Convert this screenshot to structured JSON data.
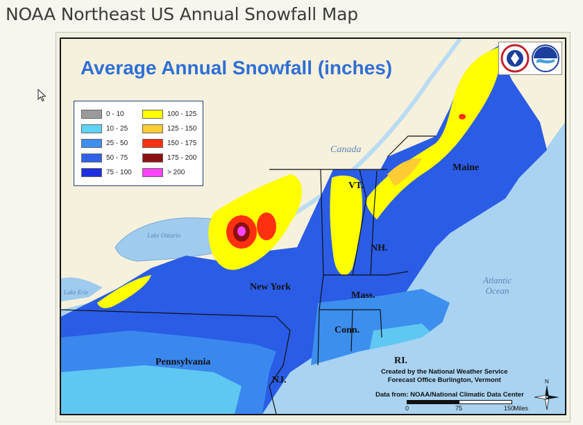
{
  "page": {
    "title": "NOAA Northeast US Annual Snowfall Map"
  },
  "map": {
    "heading": "Average Annual Snowfall (inches)",
    "legend": [
      {
        "label": "0 - 10",
        "color": "#9a9a9a"
      },
      {
        "label": "10 - 25",
        "color": "#5ed3f5"
      },
      {
        "label": "25 - 50",
        "color": "#3e8ef0"
      },
      {
        "label": "50 - 75",
        "color": "#2f62e8"
      },
      {
        "label": "75 - 100",
        "color": "#1d2fe0"
      },
      {
        "label": "100 - 125",
        "color": "#ffff00"
      },
      {
        "label": "125 - 150",
        "color": "#ffcc33"
      },
      {
        "label": "150 - 175",
        "color": "#ff3010"
      },
      {
        "label": "175 - 200",
        "color": "#8b1010"
      },
      {
        "label": "> 200",
        "color": "#ff44ff"
      }
    ],
    "places": {
      "canada": "Canada",
      "lake_ontario": "Lake Ontario",
      "lake_erie": "Lake Erie",
      "atlantic_ocean": "Atlantic\nOcean",
      "maine": "Maine",
      "vt": "VT.",
      "nh": "NH.",
      "new_york": "New York",
      "mass": "Mass.",
      "conn": "Conn.",
      "ri": "RI.",
      "pennsylvania": "Pennsylvania",
      "nj": "NJ."
    },
    "credit": "Created by the National Weather Service\nForecast Office Burlington, Vermont",
    "data_from": "Data from:  NOAA/National Climatic Data Center",
    "scale": {
      "ticks": [
        "0",
        "75",
        "150"
      ],
      "unit": "Miles"
    },
    "compass_label": "N",
    "logo_icons": [
      "nws-logo-icon",
      "noaa-logo-icon"
    ]
  }
}
